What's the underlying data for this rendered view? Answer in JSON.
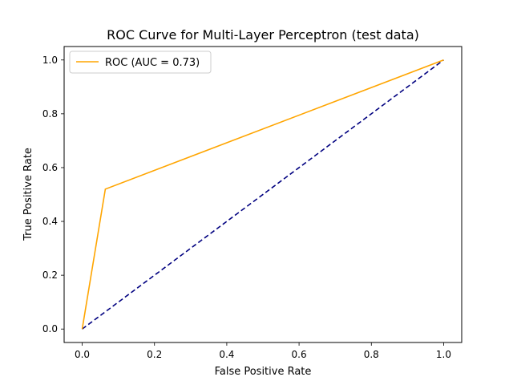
{
  "chart_data": {
    "type": "line",
    "title": "ROC Curve for Multi-Layer Perceptron (test data)",
    "xlabel": "False Positive Rate",
    "ylabel": "True Positive Rate",
    "xlim": [
      -0.05,
      1.05
    ],
    "ylim": [
      -0.05,
      1.05
    ],
    "xticks": [
      0.0,
      0.2,
      0.4,
      0.6,
      0.8,
      1.0
    ],
    "yticks": [
      0.0,
      0.2,
      0.4,
      0.6,
      0.8,
      1.0
    ],
    "xtick_labels": [
      "0.0",
      "0.2",
      "0.4",
      "0.6",
      "0.8",
      "1.0"
    ],
    "ytick_labels": [
      "0.0",
      "0.2",
      "0.4",
      "0.6",
      "0.8",
      "1.0"
    ],
    "grid": false,
    "legend_position": "top-left",
    "series": [
      {
        "name": "ROC (AUC = 0.73)",
        "color": "#ffa500",
        "style": "solid",
        "x": [
          0.0,
          0.064,
          1.0
        ],
        "y": [
          0.0,
          0.52,
          1.0
        ]
      },
      {
        "color": "#000080",
        "style": "dashed",
        "x": [
          0.0,
          1.0
        ],
        "y": [
          0.0,
          1.0
        ]
      }
    ]
  }
}
